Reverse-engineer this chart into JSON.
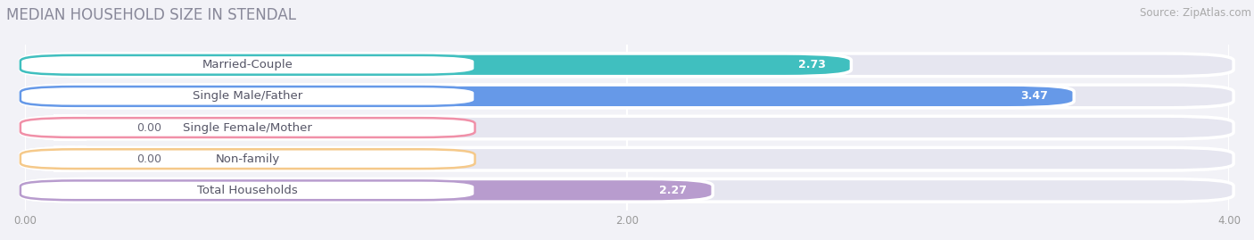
{
  "title": "MEDIAN HOUSEHOLD SIZE IN STENDAL",
  "source": "Source: ZipAtlas.com",
  "categories": [
    "Married-Couple",
    "Single Male/Father",
    "Single Female/Mother",
    "Non-family",
    "Total Households"
  ],
  "values": [
    2.73,
    3.47,
    0.0,
    0.0,
    2.27
  ],
  "bar_colors": [
    "#40BFBF",
    "#6699E8",
    "#F090A8",
    "#F5C98A",
    "#B89CCE"
  ],
  "xlim": [
    0.0,
    4.0
  ],
  "xtick_labels": [
    "0.00",
    "2.00",
    "4.00"
  ],
  "xtick_vals": [
    0.0,
    2.0,
    4.0
  ],
  "background_color": "#f2f2f7",
  "bar_bg_color": "#e6e6f0",
  "title_fontsize": 12,
  "source_fontsize": 8.5,
  "label_fontsize": 9.5,
  "value_fontsize": 9
}
